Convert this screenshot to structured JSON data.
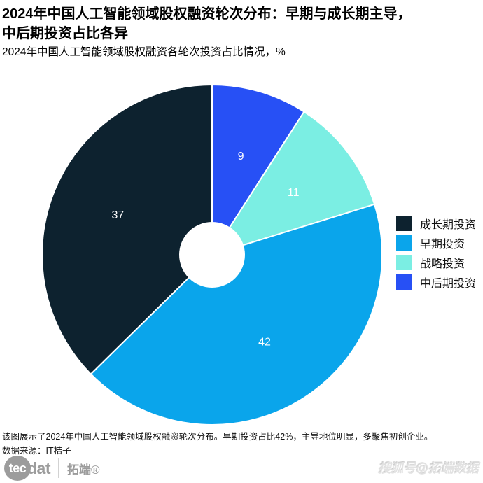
{
  "header": {
    "title_line1": "2024年中国人工智能领域股权融资轮次分布：早期与成长期主导，",
    "title_line2": "中后期投资占比各异",
    "subtitle": "2024年中国人工智能领域股权融资各轮次投资占比情况，%"
  },
  "chart_data": {
    "type": "pie",
    "style": "donut",
    "start_angle": "12-o-clock, clockwise",
    "unit": "%",
    "segments": [
      {
        "label": "中后期投资",
        "value": 9,
        "color": "#2750f5",
        "label_color": "#ffffff"
      },
      {
        "label": "战略投资",
        "value": 11,
        "color": "#7beee3",
        "label_color": "#ffffff"
      },
      {
        "label": "早期投资",
        "value": 42,
        "color": "#0aa5eb",
        "label_color": "#ffffff"
      },
      {
        "label": "成长期投资",
        "value": 37,
        "color": "#0d222f",
        "label_color": "#ffffff"
      }
    ],
    "legend": [
      {
        "label": "成长期投资",
        "color": "#0d222f"
      },
      {
        "label": "早期投资",
        "color": "#0aa5eb"
      },
      {
        "label": "战略投资",
        "color": "#7beee3"
      },
      {
        "label": "中后期投资",
        "color": "#2750f5"
      }
    ],
    "legend_position": "right",
    "slice_divider_color": "#ffffff",
    "hole_color": "#ffffff"
  },
  "footer": {
    "note": "该图展示了2024年中国人工智能领域股权融资轮次分布。早期投资占比42%，主导地位明显，多聚焦初创企业。",
    "source": "数据来源：IT桔子"
  },
  "branding": {
    "logo_circle_text": "tec",
    "logo_text": "dat",
    "logo_cn": "拓端®",
    "watermark": "搜狐号@拓端数据"
  }
}
